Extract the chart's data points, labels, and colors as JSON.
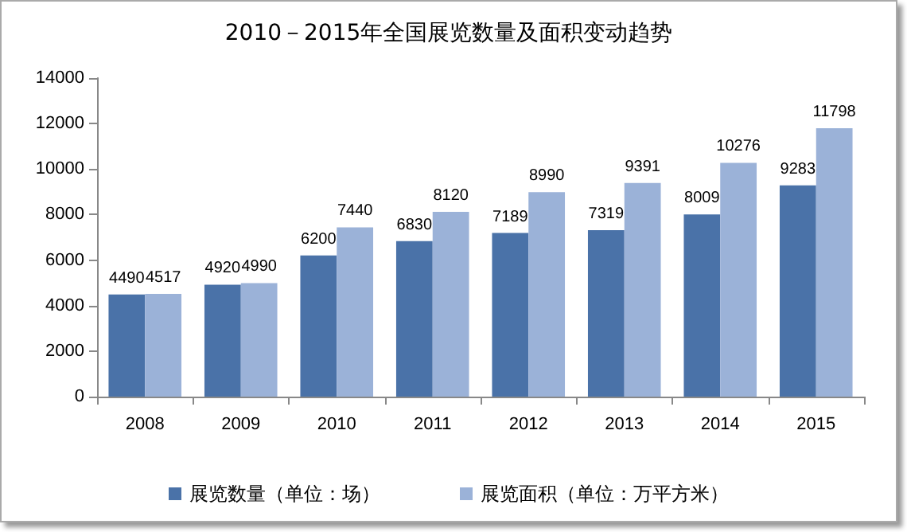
{
  "chart_data": {
    "type": "bar",
    "title": "2010－2015年全国展览数量及面积变动趋势",
    "categories": [
      "2008",
      "2009",
      "2010",
      "2011",
      "2012",
      "2013",
      "2014",
      "2015"
    ],
    "series": [
      {
        "name": "展览数量（单位：场）",
        "color": "#4a72a8",
        "values": [
          4490,
          4920,
          6200,
          6830,
          7189,
          7319,
          8009,
          9283
        ]
      },
      {
        "name": "展览面积（单位：万平方米）",
        "color": "#9bb2d8",
        "values": [
          4517,
          4990,
          7440,
          8120,
          8990,
          9391,
          10276,
          11798
        ]
      }
    ],
    "ylim": [
      0,
      14000
    ],
    "yticks": [
      0,
      2000,
      4000,
      6000,
      8000,
      10000,
      12000,
      14000
    ],
    "grid": false,
    "legend": "bottom",
    "data_labels": true
  }
}
